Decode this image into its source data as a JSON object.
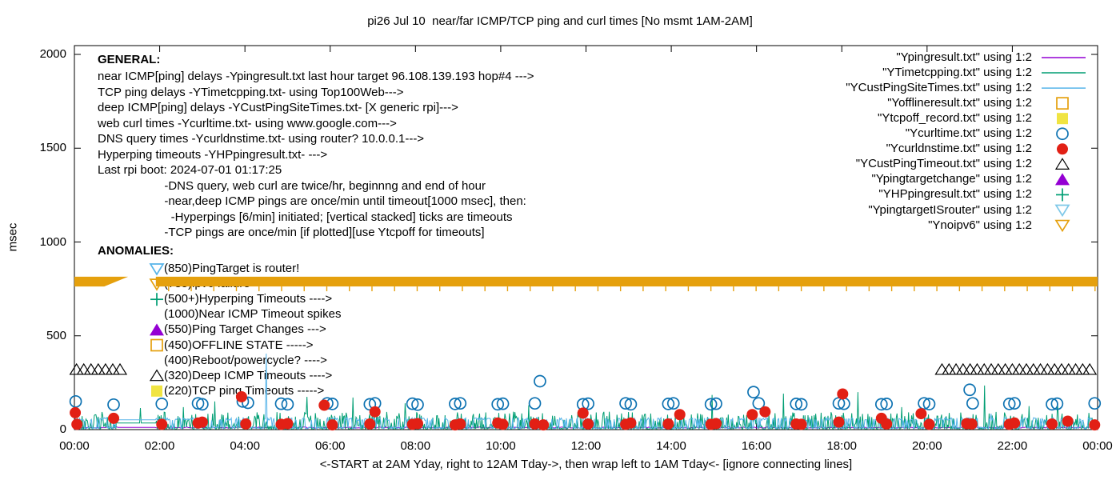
{
  "title": "pi26 Jul 10  near/far ICMP/TCP ping and curl times [No msmt 1AM-2AM]",
  "general": {
    "heading": "GENERAL:",
    "lines": [
      "near ICMP[ping] delays -Ypingresult.txt last hour target 96.108.139.193 hop#4 --->",
      "TCP ping delays -YTimetcpping.txt- using Top100Web--->",
      "deep ICMP[ping] delays -YCustPingSiteTimes.txt- [X generic rpi]--->",
      "web curl times -Ycurltime.txt- using www.google.com--->",
      "DNS query times -Ycurldnstime.txt- using router? 10.0.0.1--->",
      "Hyperping timeouts -YHPpingresult.txt- --->",
      "Last rpi boot: 2024-07-01 01:17:25",
      "                    -DNS query, web curl are twice/hr, beginnng and end of hour",
      "                    -near,deep ICMP pings are once/min until timeout[1000 msec], then:",
      "                      -Hyperpings [6/min] initiated; [vertical stacked] ticks are timeouts",
      "                    -TCP pings are once/min [if plotted][use Ytcpoff for timeouts]"
    ]
  },
  "anomalies": {
    "heading": "ANOMALIES:",
    "items": [
      {
        "marker": "triangle-down-open",
        "color": "#56B4E9",
        "text": "(850)PingTarget is router!"
      },
      {
        "marker": "triangle-down-open",
        "color": "#E5A00D",
        "text": "(785)ipv6 failure ---->"
      },
      {
        "marker": "plus",
        "color": "#009E73",
        "text": "(500+)Hyperping Timeouts ---->"
      },
      {
        "marker": "none",
        "color": "",
        "text": "(1000)Near ICMP Timeout spikes"
      },
      {
        "marker": "triangle-up-filled",
        "color": "#9400D3",
        "text": "(550)Ping Target Changes --->"
      },
      {
        "marker": "square-open",
        "color": "#E5A00D",
        "text": "(450)OFFLINE STATE ----->"
      },
      {
        "marker": "none",
        "color": "",
        "text": "(400)Reboot/powercycle? ---->"
      },
      {
        "marker": "triangle-up-open",
        "color": "#000000",
        "text": "(320)Deep ICMP Timeouts ---->"
      },
      {
        "marker": "square-filled",
        "color": "#F0E442",
        "text": "(220)TCP ping Timeouts ----->"
      }
    ]
  },
  "chart_data": {
    "type": "line+scatter",
    "title": "pi26 Jul 10  near/far ICMP/TCP ping and curl times [No msmt 1AM-2AM]",
    "ylabel": "msec",
    "xlabel_note": "<-START at 2AM Yday, right to 12AM Tday->, then wrap left to 1AM Tday<- [ignore connecting lines]",
    "x_ticks": [
      "00:00",
      "02:00",
      "04:00",
      "06:00",
      "08:00",
      "10:00",
      "12:00",
      "14:00",
      "16:00",
      "18:00",
      "20:00",
      "22:00",
      "00:00"
    ],
    "y_ticks": [
      0,
      500,
      1000,
      1500,
      2000
    ],
    "ylim": [
      0,
      2000
    ],
    "x_hours": [
      0,
      24
    ],
    "gap_hours": [
      1.0,
      1.92
    ],
    "grid": false,
    "legend_position": "top-right",
    "series": [
      {
        "name": "Ypingresult",
        "legend_label": "\"Ypingresult.txt\" using 1:2",
        "style": "line",
        "color": "#9400D3",
        "base_range": [
          8,
          14
        ],
        "gap_value": 12
      },
      {
        "name": "YTimetcpping",
        "legend_label": "\"YTimetcpping.txt\" using 1:2",
        "style": "noisy-line",
        "color": "#009E73",
        "noise_range": [
          3,
          95
        ],
        "gap_value": 35,
        "spikes": [
          [
            1.55,
            115
          ],
          [
            2.55,
            120
          ],
          [
            3.3,
            150
          ],
          [
            5.45,
            175
          ],
          [
            6.53,
            171
          ],
          [
            7.75,
            140
          ],
          [
            9.08,
            85
          ],
          [
            10.66,
            130
          ],
          [
            12.55,
            95
          ],
          [
            14.96,
            185
          ],
          [
            16.63,
            192
          ],
          [
            18.37,
            200
          ],
          [
            19.4,
            120
          ],
          [
            21.35,
            235
          ],
          [
            22.4,
            125
          ],
          [
            23.05,
            140
          ]
        ]
      },
      {
        "name": "YCustPingSiteTimes",
        "legend_label": "\"YCustPingSiteTimes.txt\" using 1:2",
        "style": "battlement-line",
        "color": "#56B4E9",
        "noise_low": [
          4,
          14
        ],
        "noise_high": [
          48,
          64
        ],
        "gap_value": 52,
        "spikes": [
          [
            4.5,
            405
          ],
          [
            21.5,
            85
          ]
        ]
      },
      {
        "name": "Yofflineresult",
        "legend_label": "\"Yofflineresult.txt\" using 1:2",
        "style": "points",
        "marker": "square-open",
        "color": "#E5A00D",
        "points": []
      },
      {
        "name": "Ytcpoff_record",
        "legend_label": "\"Ytcpoff_record.txt\" using 1:2",
        "style": "points",
        "marker": "square-filled",
        "color": "#F0E442",
        "points": []
      },
      {
        "name": "Ycurltime",
        "legend_label": "\"Ycurltime.txt\" using 1:2",
        "style": "points",
        "marker": "circle-open",
        "color": "#0D72B2",
        "points": [
          [
            0.03,
            150
          ],
          [
            0.92,
            133
          ],
          [
            2.05,
            137
          ],
          [
            2.9,
            140
          ],
          [
            3.0,
            135
          ],
          [
            3.95,
            150
          ],
          [
            4.07,
            143
          ],
          [
            4.85,
            138
          ],
          [
            5.0,
            135
          ],
          [
            5.93,
            140
          ],
          [
            6.05,
            137
          ],
          [
            6.93,
            135
          ],
          [
            7.05,
            140
          ],
          [
            7.93,
            138
          ],
          [
            8.05,
            133
          ],
          [
            8.93,
            137
          ],
          [
            9.05,
            140
          ],
          [
            9.93,
            135
          ],
          [
            10.05,
            138
          ],
          [
            10.8,
            140
          ],
          [
            10.92,
            258
          ],
          [
            11.93,
            135
          ],
          [
            12.05,
            138
          ],
          [
            12.93,
            140
          ],
          [
            13.05,
            135
          ],
          [
            13.93,
            137
          ],
          [
            14.05,
            140
          ],
          [
            14.93,
            135
          ],
          [
            15.05,
            138
          ],
          [
            15.93,
            200
          ],
          [
            16.05,
            140
          ],
          [
            16.93,
            137
          ],
          [
            17.05,
            135
          ],
          [
            17.93,
            140
          ],
          [
            18.05,
            138
          ],
          [
            18.93,
            135
          ],
          [
            19.05,
            137
          ],
          [
            19.93,
            140
          ],
          [
            20.05,
            136
          ],
          [
            21.0,
            212
          ],
          [
            21.07,
            140
          ],
          [
            21.93,
            137
          ],
          [
            22.05,
            140
          ],
          [
            22.93,
            135
          ],
          [
            23.05,
            138
          ],
          [
            23.93,
            140
          ]
        ]
      },
      {
        "name": "Ycurldnstime",
        "legend_label": "\"Ycurldnstime.txt\" using 1:2",
        "style": "points",
        "marker": "circle-filled",
        "color": "#E22015",
        "points": [
          [
            0.02,
            90
          ],
          [
            0.06,
            28
          ],
          [
            0.92,
            60
          ],
          [
            2.05,
            28
          ],
          [
            2.9,
            35
          ],
          [
            3.0,
            40
          ],
          [
            3.92,
            175
          ],
          [
            4.02,
            30
          ],
          [
            4.85,
            28
          ],
          [
            5.0,
            32
          ],
          [
            5.86,
            130
          ],
          [
            6.05,
            25
          ],
          [
            6.93,
            30
          ],
          [
            7.05,
            95
          ],
          [
            7.93,
            28
          ],
          [
            8.05,
            32
          ],
          [
            8.93,
            25
          ],
          [
            9.05,
            30
          ],
          [
            9.93,
            35
          ],
          [
            10.05,
            28
          ],
          [
            10.8,
            30
          ],
          [
            11.0,
            25
          ],
          [
            11.93,
            88
          ],
          [
            12.05,
            30
          ],
          [
            12.93,
            28
          ],
          [
            13.05,
            35
          ],
          [
            13.93,
            30
          ],
          [
            14.2,
            80
          ],
          [
            14.93,
            28
          ],
          [
            15.05,
            32
          ],
          [
            15.9,
            80
          ],
          [
            16.2,
            95
          ],
          [
            16.93,
            30
          ],
          [
            17.05,
            28
          ],
          [
            17.93,
            40
          ],
          [
            18.02,
            190
          ],
          [
            18.93,
            60
          ],
          [
            19.05,
            30
          ],
          [
            19.86,
            85
          ],
          [
            20.05,
            28
          ],
          [
            20.93,
            32
          ],
          [
            21.05,
            30
          ],
          [
            21.93,
            28
          ],
          [
            22.05,
            35
          ],
          [
            22.93,
            30
          ],
          [
            23.3,
            45
          ],
          [
            23.93,
            25
          ]
        ]
      },
      {
        "name": "YCustPingTimeout",
        "legend_label": "\"YCustPingTimeout.txt\" using 1:2",
        "style": "points",
        "marker": "triangle-up-open",
        "color": "#000000",
        "points": [],
        "rows": [
          {
            "v": 320,
            "from": 0.05,
            "to": 1.2,
            "step": 0.17
          },
          {
            "v": 320,
            "from": 20.35,
            "to": 23.97,
            "step": 0.165
          }
        ]
      },
      {
        "name": "Ypingtargetchange",
        "legend_label": "\"Ypingtargetchange\" using 1:2",
        "style": "points",
        "marker": "triangle-up-filled",
        "color": "#9400D3",
        "points": []
      },
      {
        "name": "YHPpingresult",
        "legend_label": "\"YHPpingresult.txt\" using 1:2",
        "style": "points",
        "marker": "plus",
        "color": "#009E73",
        "points": []
      },
      {
        "name": "YpingtargetISrouter",
        "legend_label": "\"YpingtargetISrouter\" using 1:2",
        "style": "points",
        "marker": "triangle-down-open",
        "color": "#7EC8E8",
        "points": []
      },
      {
        "name": "Ynoipv6",
        "legend_label": "\"Ynoipv6\" using 1:2",
        "style": "band",
        "marker": "triangle-down-open",
        "color": "#E5A00D",
        "band": {
          "v_top": 815,
          "v_bottom": 763,
          "segments": [
            [
              0,
              1.26
            ],
            [
              1.91,
              24
            ]
          ],
          "taper_end_t": 0.7,
          "tick_step": 0.53
        }
      }
    ]
  }
}
